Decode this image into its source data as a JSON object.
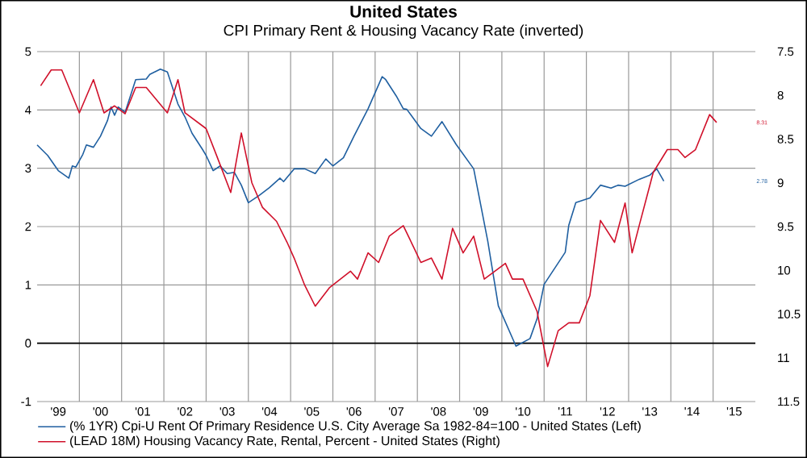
{
  "chart_data": {
    "type": "line",
    "title": "**United States**",
    "subtitle": "CPI Primary Rent & Housing Vacancy Rate (inverted)",
    "xlim": [
      "1999-01",
      "2016-01"
    ],
    "xticks": [
      {
        "value": "2000-01",
        "label": null
      },
      {
        "value": "2001-01",
        "label": null
      },
      {
        "value": "2002-01",
        "label": null
      },
      {
        "value": "2003-01",
        "label": null
      },
      {
        "value": "2004-01",
        "label": null
      },
      {
        "value": "2005-01",
        "label": null
      },
      {
        "value": "2006-01",
        "label": null
      },
      {
        "value": "2007-01",
        "label": null
      },
      {
        "value": "2008-01",
        "label": null
      },
      {
        "value": "2009-01",
        "label": null
      },
      {
        "value": "2010-01",
        "label": null
      },
      {
        "value": "2011-01",
        "label": null
      },
      {
        "value": "2012-01",
        "label": null
      },
      {
        "value": "2013-01",
        "label": null
      },
      {
        "value": "2014-01",
        "label": null
      },
      {
        "value": "2015-01",
        "label": null
      },
      {
        "value": "1999-07",
        "label": "'99"
      },
      {
        "value": "2000-07",
        "label": "'00"
      },
      {
        "value": "2001-07",
        "label": "'01"
      },
      {
        "value": "2002-07",
        "label": "'02"
      },
      {
        "value": "2003-07",
        "label": "'03"
      },
      {
        "value": "2004-07",
        "label": "'04"
      },
      {
        "value": "2005-07",
        "label": "'05"
      },
      {
        "value": "2006-07",
        "label": "'06"
      },
      {
        "value": "2007-07",
        "label": "'07"
      },
      {
        "value": "2008-07",
        "label": "'08"
      },
      {
        "value": "2009-07",
        "label": "'09"
      },
      {
        "value": "2010-07",
        "label": "'10"
      },
      {
        "value": "2011-07",
        "label": "'11"
      },
      {
        "value": "2012-07",
        "label": "'12"
      },
      {
        "value": "2013-07",
        "label": "'13"
      },
      {
        "value": "2014-07",
        "label": "'14"
      },
      {
        "value": "2015-07",
        "label": "'15"
      }
    ],
    "ylim": [
      -1,
      5
    ],
    "yticks": [
      -1,
      0,
      1,
      2,
      3,
      4,
      5
    ],
    "y2lim": [
      11.5,
      7.5
    ],
    "y2ticks": [
      7.5,
      8,
      8.5,
      9,
      9.5,
      10,
      10.5,
      11,
      11.5
    ],
    "grid": true,
    "legend": "bottom",
    "ref_lines": [
      {
        "axis": "y",
        "value": 0,
        "color": "#000000"
      }
    ],
    "annotations": [
      "2.78",
      "8.31"
    ],
    "series": [
      {
        "name": "(% 1YR) Cpi-U Rent Of Primary Residence U.S. City Average Sa 1982-84=100 - United States  (Left)",
        "color": "#1f5fa0",
        "x": [
          "1999-01",
          "1999-04",
          "1999-07",
          "1999-10",
          "1999-11",
          "1999-12",
          "2000-02",
          "2000-03",
          "2000-05",
          "2000-07",
          "2000-09",
          "2000-10",
          "2000-11",
          "2000-12",
          "2001-02",
          "2001-05",
          "2001-08",
          "2001-09",
          "2001-12",
          "2002-02",
          "2002-05",
          "2002-07",
          "2002-09",
          "2002-12",
          "2003-01",
          "2003-03",
          "2003-05",
          "2003-07",
          "2003-09",
          "2003-11",
          "2004-01",
          "2004-04",
          "2004-07",
          "2004-10",
          "2004-11",
          "2005-02",
          "2005-05",
          "2005-08",
          "2005-11",
          "2006-01",
          "2006-04",
          "2006-07",
          "2006-11",
          "2007-03",
          "2007-04",
          "2007-07",
          "2007-09",
          "2007-10",
          "2008-02",
          "2008-05",
          "2008-08",
          "2008-12",
          "2009-05",
          "2009-09",
          "2009-12",
          "2010-05",
          "2010-09",
          "2010-11",
          "2011-01",
          "2011-07",
          "2011-08",
          "2011-10",
          "2012-02",
          "2012-05",
          "2012-08",
          "2012-10",
          "2012-12",
          "2013-04",
          "2013-07",
          "2013-09",
          "2013-11"
        ],
        "values": [
          3.4,
          3.22,
          2.96,
          2.83,
          3.04,
          3.02,
          3.24,
          3.4,
          3.36,
          3.55,
          3.82,
          4.05,
          3.91,
          4.05,
          3.96,
          4.52,
          4.53,
          4.61,
          4.7,
          4.65,
          4.1,
          3.88,
          3.6,
          3.32,
          3.22,
          2.96,
          3.04,
          2.91,
          2.93,
          2.71,
          2.41,
          2.53,
          2.67,
          2.83,
          2.77,
          2.99,
          2.99,
          2.91,
          3.16,
          3.04,
          3.18,
          3.55,
          4.02,
          4.57,
          4.52,
          4.24,
          4.02,
          4.01,
          3.68,
          3.55,
          3.8,
          3.41,
          2.99,
          1.75,
          0.64,
          -0.05,
          0.08,
          0.42,
          1.01,
          1.56,
          2.02,
          2.41,
          2.49,
          2.71,
          2.66,
          2.71,
          2.69,
          2.81,
          2.88,
          2.99,
          2.78
        ]
      },
      {
        "name": "(LEAD 18M) Housing Vacancy Rate, Rental, Percent - United States  (Right)",
        "color": "#d0102a",
        "axis": "y2",
        "x": [
          "1999-02",
          "1999-05",
          "1999-08",
          "2000-01",
          "2000-05",
          "2000-08",
          "2000-11",
          "2001-02",
          "2001-05",
          "2001-08",
          "2002-02",
          "2002-05",
          "2002-07",
          "2003-01",
          "2003-04",
          "2003-08",
          "2003-11",
          "2004-02",
          "2004-05",
          "2004-09",
          "2004-12",
          "2005-02",
          "2005-05",
          "2005-08",
          "2005-12",
          "2006-06",
          "2006-08",
          "2006-11",
          "2007-02",
          "2007-05",
          "2007-09",
          "2007-12",
          "2008-02",
          "2008-05",
          "2008-08",
          "2008-11",
          "2009-02",
          "2009-05",
          "2009-08",
          "2010-02",
          "2010-04",
          "2010-07",
          "2010-11",
          "2011-02",
          "2011-05",
          "2011-08",
          "2011-11",
          "2012-02",
          "2012-05",
          "2012-09",
          "2012-12",
          "2013-02",
          "2013-04",
          "2013-08",
          "2013-12",
          "2014-03",
          "2014-05",
          "2014-08",
          "2014-12",
          "2015-02"
        ],
        "values": [
          7.89,
          7.71,
          7.71,
          8.2,
          7.82,
          8.2,
          8.12,
          8.21,
          7.91,
          7.91,
          8.2,
          7.82,
          8.2,
          8.38,
          8.69,
          9.11,
          8.43,
          9.0,
          9.28,
          9.44,
          9.68,
          9.86,
          10.17,
          10.41,
          10.2,
          10.01,
          10.1,
          9.8,
          9.91,
          9.61,
          9.49,
          9.74,
          9.91,
          9.86,
          10.1,
          9.52,
          9.8,
          9.61,
          10.1,
          9.92,
          10.1,
          10.1,
          10.47,
          11.1,
          10.69,
          10.6,
          10.6,
          10.29,
          9.43,
          9.68,
          9.23,
          9.8,
          9.49,
          8.88,
          8.62,
          8.62,
          8.71,
          8.62,
          8.22,
          8.31
        ]
      }
    ]
  }
}
